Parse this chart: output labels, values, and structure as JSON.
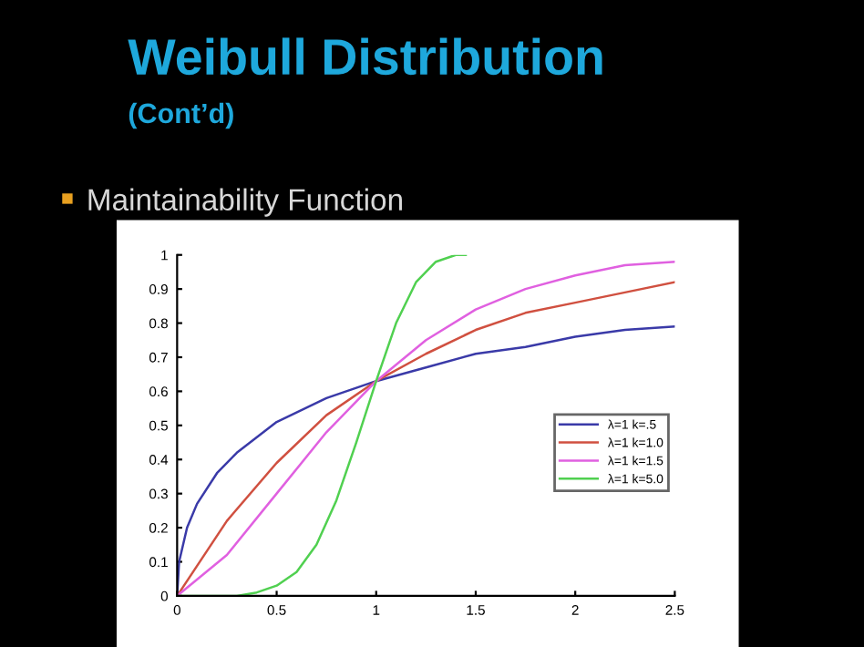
{
  "chart_data": {
    "type": "line",
    "title": "Weibull Distribution",
    "subtitle": "(Cont’d)",
    "annotations": [
      "Maintainability Function"
    ],
    "xlim": [
      0,
      2.5
    ],
    "xticks": [
      0,
      0.5,
      1,
      1.5,
      2,
      2.5
    ],
    "ylim": [
      0,
      1
    ],
    "yticks": [
      0,
      0.1,
      0.2,
      0.3,
      0.4,
      0.5,
      0.6,
      0.7,
      0.8,
      0.9,
      1
    ],
    "grid": false,
    "legend": "right",
    "marker": "none",
    "line_style": "solid",
    "series": [
      {
        "name": "λ=1 k=.5",
        "color": "#3a3aa8",
        "x": [
          0,
          0.01,
          0.05,
          0.1,
          0.2,
          0.3,
          0.5,
          0.75,
          1,
          1.25,
          1.5,
          1.75,
          2,
          2.25,
          2.5
        ],
        "values": [
          0,
          0.1,
          0.2,
          0.27,
          0.36,
          0.42,
          0.51,
          0.58,
          0.63,
          0.67,
          0.71,
          0.73,
          0.76,
          0.78,
          0.79
        ]
      },
      {
        "name": "λ=1 k=1.0",
        "color": "#d05040",
        "x": [
          0,
          0.25,
          0.5,
          0.75,
          1,
          1.25,
          1.5,
          1.75,
          2,
          2.25,
          2.5
        ],
        "values": [
          0,
          0.22,
          0.39,
          0.53,
          0.63,
          0.71,
          0.78,
          0.83,
          0.86,
          0.89,
          0.92
        ]
      },
      {
        "name": "λ=1 k=1.5",
        "color": "#e060e0",
        "x": [
          0,
          0.25,
          0.5,
          0.75,
          1,
          1.25,
          1.5,
          1.75,
          2,
          2.25,
          2.5
        ],
        "values": [
          0,
          0.12,
          0.3,
          0.48,
          0.63,
          0.75,
          0.84,
          0.9,
          0.94,
          0.97,
          0.98
        ]
      },
      {
        "name": "λ=1 k=5.0",
        "color": "#50d050",
        "x": [
          0,
          0.3,
          0.4,
          0.5,
          0.6,
          0.7,
          0.8,
          0.9,
          1,
          1.1,
          1.2,
          1.3,
          1.4,
          1.45
        ],
        "values": [
          0,
          0,
          0.01,
          0.03,
          0.07,
          0.15,
          0.28,
          0.45,
          0.63,
          0.8,
          0.92,
          0.98,
          1,
          1
        ]
      }
    ]
  }
}
